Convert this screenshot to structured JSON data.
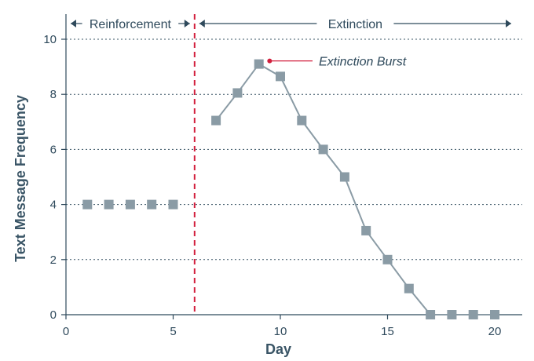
{
  "chart_data": {
    "type": "line",
    "title": "",
    "xlabel": "Day",
    "ylabel": "Text Message Frequency",
    "xlim": [
      0,
      21
    ],
    "ylim": [
      0,
      10
    ],
    "x_ticks": [
      0,
      5,
      10,
      15,
      20
    ],
    "y_ticks": [
      0,
      2,
      4,
      6,
      8,
      10
    ],
    "grid": "horizontal-dotted",
    "series": [
      {
        "phase": "Reinforcement",
        "x": [
          1,
          2,
          3,
          4,
          5
        ],
        "y": [
          4,
          4,
          4,
          4,
          4
        ],
        "connected": false
      },
      {
        "phase": "Extinction",
        "x": [
          7,
          8,
          9,
          10,
          11,
          12,
          13,
          14,
          15,
          16,
          17,
          18,
          19,
          20
        ],
        "y": [
          7.05,
          8.05,
          9.1,
          8.65,
          7.05,
          6.0,
          5.0,
          3.05,
          2.0,
          0.95,
          0,
          0,
          0,
          0
        ],
        "connected": true
      }
    ],
    "phase_change_x": 6,
    "phases": [
      {
        "label": "Reinforcement",
        "x_range": [
          0,
          6
        ]
      },
      {
        "label": "Extinction",
        "x_range": [
          6,
          21
        ]
      }
    ],
    "annotations": [
      {
        "text": "Extinction Burst",
        "x": 9.5,
        "y": 9.1
      }
    ],
    "colors": {
      "marker": "#8a9ba5",
      "line": "#8a9ba5",
      "phase_line": "#d21e3c",
      "annotation_dot": "#d21e3c",
      "text": "#2f4a5c",
      "axis": "#2f4a5c",
      "grid": "#3a5566"
    }
  }
}
